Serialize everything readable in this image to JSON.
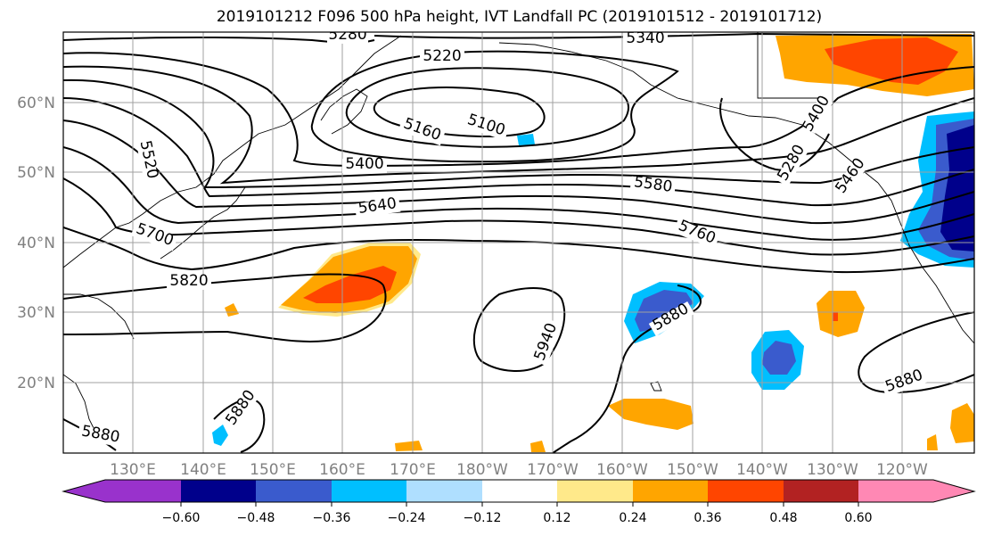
{
  "title": "2019101212 F096 500 hPa height, IVT Landfall PC (2019101512 - 2019101712)",
  "latitude_labels": [
    "60°N",
    "50°N",
    "40°N",
    "30°N",
    "20°N"
  ],
  "longitude_labels": [
    "130°E",
    "140°E",
    "150°E",
    "160°E",
    "170°E",
    "180°W",
    "170°W",
    "160°W",
    "150°W",
    "140°W",
    "130°W",
    "120°W"
  ],
  "contour_labels": [
    "5280",
    "5340",
    "5220",
    "5100",
    "5160",
    "5520",
    "5400",
    "5580",
    "5640",
    "5700",
    "5760",
    "5820",
    "5940",
    "5880",
    "5880",
    "5880",
    "5880",
    "5280",
    "5400",
    "5460"
  ],
  "colorbar": {
    "tick_labels": [
      "−0.60",
      "−0.48",
      "−0.36",
      "−0.24",
      "−0.12",
      "0.12",
      "0.24",
      "0.36",
      "0.48",
      "0.60"
    ],
    "colors": [
      "#9932cc",
      "#00008b",
      "#3a5bcd",
      "#00bfff",
      "#afdfff",
      "#ffffff",
      "#ffe98a",
      "#ffa500",
      "#ff4500",
      "#b22222",
      "#ff88b4"
    ]
  },
  "colors": {
    "contour": "#000000",
    "grid": "#a0a0a0",
    "axis_labels": "#808080"
  }
}
